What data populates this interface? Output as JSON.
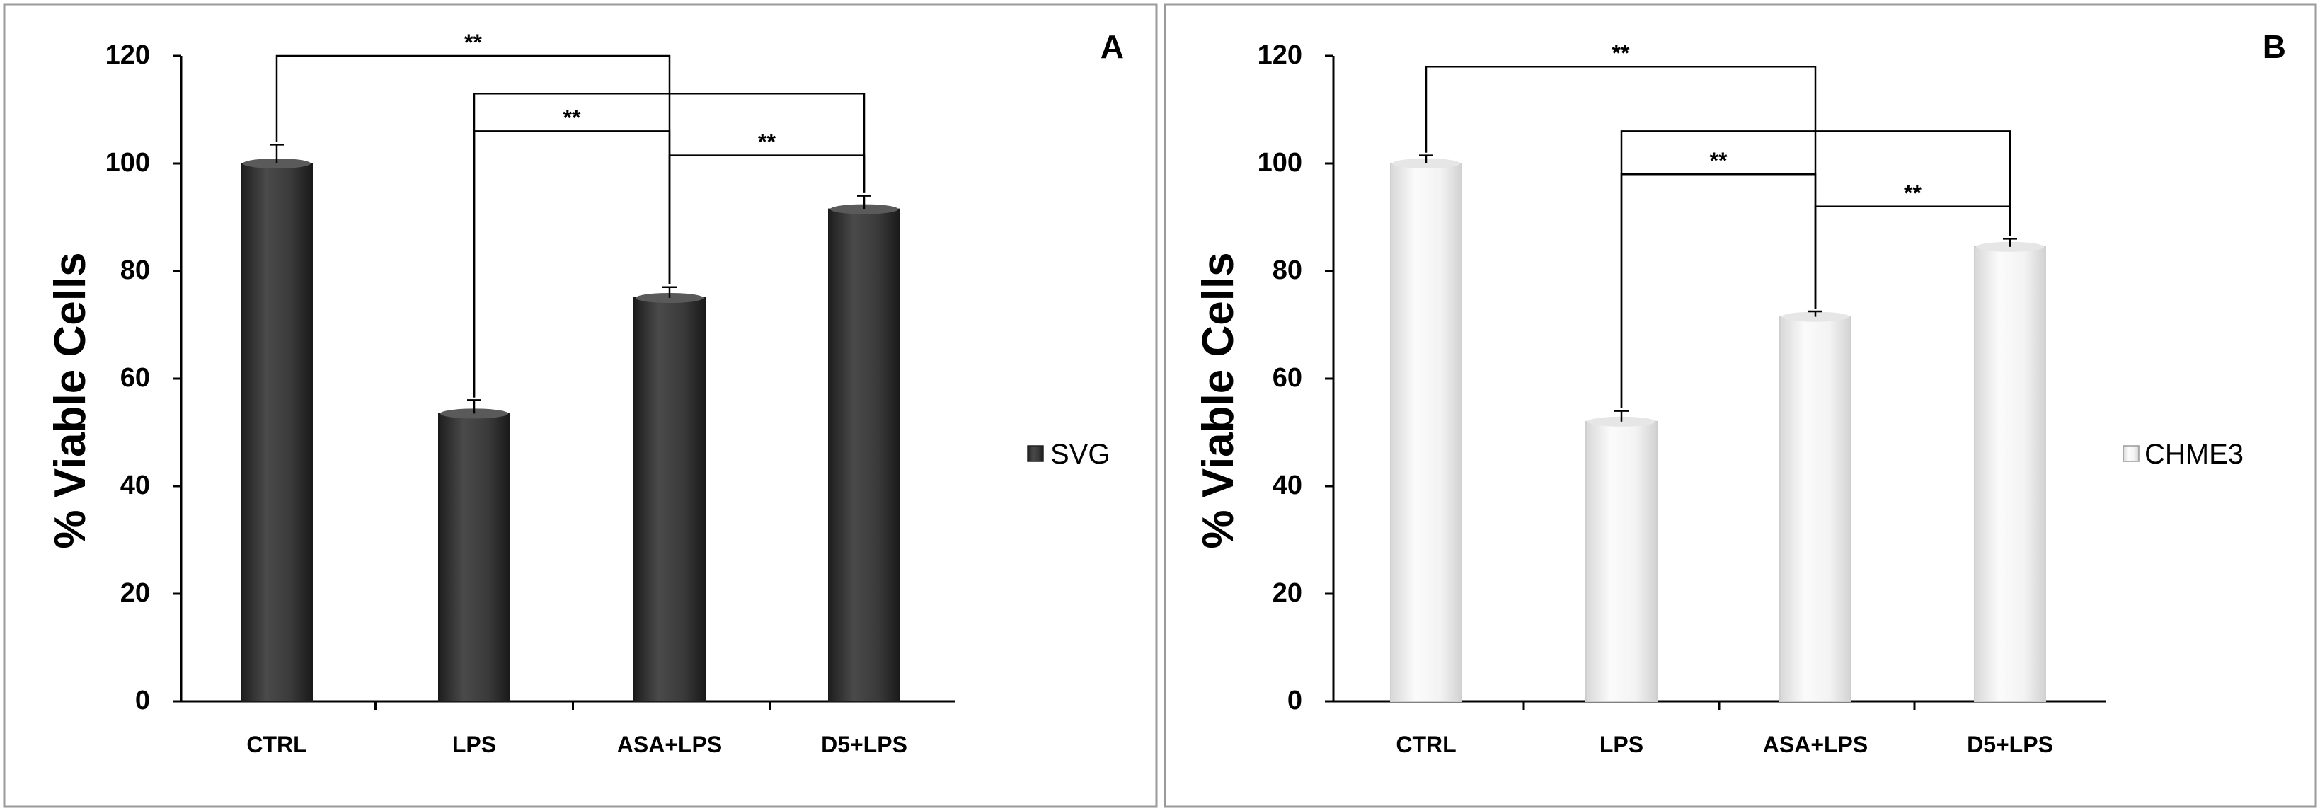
{
  "chart_data": [
    {
      "type": "bar",
      "panel_label": "A",
      "legend": "SVG",
      "series_color": "#3c3c3c",
      "ylabel": "% Viable Cells",
      "xlabel": "",
      "ylim": [
        0,
        120
      ],
      "yticks": [
        "0",
        "20",
        "40",
        "60",
        "80",
        "100",
        "120"
      ],
      "categories": [
        "CTRL",
        "LPS",
        "ASA+LPS",
        "D5+LPS"
      ],
      "values": [
        100,
        53.5,
        75,
        91.5
      ],
      "errors": [
        3.5,
        2.5,
        2,
        2.5
      ],
      "significance": [
        {
          "from": 0,
          "to": 2,
          "level": 120,
          "label": "**"
        },
        {
          "from": 1,
          "to": 3,
          "level": 113,
          "label": ""
        },
        {
          "from": 1,
          "to": 2,
          "level": 106,
          "label": "**"
        },
        {
          "from": 2,
          "to": 3,
          "level": 101.5,
          "label": "**"
        }
      ]
    },
    {
      "type": "bar",
      "panel_label": "B",
      "legend": "CHME3",
      "series_color": "#f2f2f2",
      "ylabel": "% Viable Cells",
      "xlabel": "",
      "ylim": [
        0,
        120
      ],
      "yticks": [
        "0",
        "20",
        "40",
        "60",
        "80",
        "100",
        "120"
      ],
      "categories": [
        "CTRL",
        "LPS",
        "ASA+LPS",
        "D5+LPS"
      ],
      "values": [
        100,
        52,
        71.5,
        84.5
      ],
      "errors": [
        1.5,
        2,
        1,
        1.5
      ],
      "significance": [
        {
          "from": 0,
          "to": 2,
          "level": 118,
          "label": "**"
        },
        {
          "from": 1,
          "to": 3,
          "level": 106,
          "label": ""
        },
        {
          "from": 1,
          "to": 2,
          "level": 98,
          "label": "**"
        },
        {
          "from": 2,
          "to": 3,
          "level": 92,
          "label": "**"
        }
      ]
    }
  ]
}
